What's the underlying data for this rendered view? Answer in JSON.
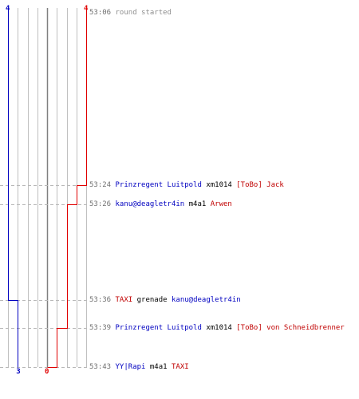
{
  "colors": {
    "team_blue": "#0000c0",
    "team_red": "#e00000",
    "grid": "#c0c0c0",
    "dash": "#b8b8b8",
    "center": "#808080",
    "time": "#707070"
  },
  "scores": {
    "blue_start": "4",
    "red_start": "4",
    "blue_end": "3",
    "red_end": "0"
  },
  "events": [
    {
      "time": "53:06",
      "type": "message",
      "text": "round started"
    },
    {
      "time": "53:24",
      "type": "kill",
      "killer": "Prinzregent Luitpold",
      "killer_team": "blue",
      "weapon": "xm1014",
      "victim": "[ToBo] Jack",
      "victim_team": "red"
    },
    {
      "time": "53:26",
      "type": "kill",
      "killer": "kanu@deagletr4in",
      "killer_team": "blue",
      "weapon": "m4a1",
      "victim": "Arwen",
      "victim_team": "red"
    },
    {
      "time": "53:36",
      "type": "kill",
      "killer": "TAXI",
      "killer_team": "red",
      "weapon": "grenade",
      "victim": "kanu@deagletr4in",
      "victim_team": "blue"
    },
    {
      "time": "53:39",
      "type": "kill",
      "killer": "Prinzregent Luitpold",
      "killer_team": "blue",
      "weapon": "xm1014",
      "victim": "[ToBo] von Schneidbrenner",
      "victim_team": "red"
    },
    {
      "time": "53:43",
      "type": "kill",
      "killer": "YY|Rapi",
      "killer_team": "blue",
      "weapon": "m4a1",
      "victim": "TAXI",
      "victim_team": "red"
    }
  ]
}
